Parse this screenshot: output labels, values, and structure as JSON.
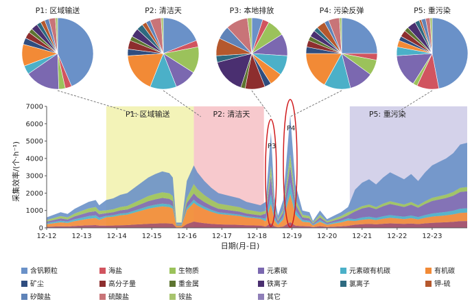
{
  "chart_data": {
    "type": "area",
    "ylabel": "采集效率/(个·h⁻¹)",
    "xlabel": "日期(月-日)",
    "ylim": [
      0,
      7000
    ],
    "yticks": [
      0,
      1000,
      2000,
      3000,
      4000,
      5000,
      6000,
      7000
    ],
    "xticks": [
      "12-12",
      "12-13",
      "12-14",
      "12-15",
      "12-16",
      "12-17",
      "12-18",
      "12-19",
      "12-20",
      "12-21",
      "12-22",
      "12-23"
    ],
    "xlim_days": [
      12,
      24
    ],
    "periods": [
      {
        "label": "P1: 区域输送",
        "start": 13.7,
        "end": 16.2,
        "color": "#f3f3b8"
      },
      {
        "label": "P2: 清洁天",
        "start": 16.2,
        "end": 18.2,
        "color": "#f7c9cd"
      },
      {
        "label": "P5: 重污染",
        "start": 20.65,
        "end": 24.0,
        "color": "#d4d2ea"
      }
    ],
    "peak_labels": [
      {
        "label": "P3",
        "day": 18.4
      },
      {
        "label": "P4",
        "day": 18.95
      }
    ],
    "total_profile": [
      [
        12.0,
        600
      ],
      [
        12.2,
        750
      ],
      [
        12.4,
        900
      ],
      [
        12.6,
        800
      ],
      [
        12.8,
        1100
      ],
      [
        13.0,
        1300
      ],
      [
        13.2,
        1500
      ],
      [
        13.4,
        1600
      ],
      [
        13.5,
        1300
      ],
      [
        13.7,
        1600
      ],
      [
        13.9,
        1700
      ],
      [
        14.1,
        1900
      ],
      [
        14.3,
        2000
      ],
      [
        14.5,
        2300
      ],
      [
        14.7,
        2600
      ],
      [
        14.9,
        2900
      ],
      [
        15.1,
        3100
      ],
      [
        15.3,
        3250
      ],
      [
        15.5,
        3150
      ],
      [
        15.6,
        2900
      ],
      [
        15.7,
        300
      ],
      [
        15.85,
        300
      ],
      [
        16.0,
        2700
      ],
      [
        16.2,
        3600
      ],
      [
        16.3,
        3200
      ],
      [
        16.5,
        2700
      ],
      [
        16.7,
        2300
      ],
      [
        16.9,
        2000
      ],
      [
        17.1,
        1900
      ],
      [
        17.3,
        1800
      ],
      [
        17.5,
        1700
      ],
      [
        17.7,
        1500
      ],
      [
        17.9,
        1400
      ],
      [
        18.1,
        1300
      ],
      [
        18.25,
        1500
      ],
      [
        18.4,
        5500
      ],
      [
        18.5,
        1800
      ],
      [
        18.6,
        700
      ],
      [
        18.75,
        1600
      ],
      [
        18.95,
        6500
      ],
      [
        19.1,
        2500
      ],
      [
        19.3,
        1000
      ],
      [
        19.5,
        900
      ],
      [
        19.6,
        400
      ],
      [
        19.8,
        1000
      ],
      [
        20.0,
        500
      ],
      [
        20.2,
        700
      ],
      [
        20.4,
        900
      ],
      [
        20.6,
        1200
      ],
      [
        20.8,
        2200
      ],
      [
        21.0,
        2600
      ],
      [
        21.2,
        2800
      ],
      [
        21.4,
        2500
      ],
      [
        21.6,
        2900
      ],
      [
        21.8,
        3200
      ],
      [
        22.0,
        3000
      ],
      [
        22.2,
        2800
      ],
      [
        22.4,
        3100
      ],
      [
        22.6,
        2700
      ],
      [
        22.8,
        3200
      ],
      [
        23.0,
        3600
      ],
      [
        23.2,
        3800
      ],
      [
        23.4,
        4000
      ],
      [
        23.6,
        4300
      ],
      [
        23.8,
        4800
      ],
      [
        24.0,
        4900
      ]
    ],
    "stack_layers": [
      {
        "series": "硫酸盐",
        "color": "#a14a66",
        "fractions": {
          "p1": 0.08,
          "p2": 0.1,
          "p3": 0.05,
          "p4": 0.05,
          "p5": 0.08,
          "base": 0.1
        }
      },
      {
        "series": "有机碳",
        "color": "#f28a36",
        "fractions": {
          "p1": 0.3,
          "p2": 0.3,
          "p3": 0.2,
          "p4": 0.25,
          "p5": 0.1,
          "base": 0.25
        }
      },
      {
        "series": "元素碳有机碳",
        "color": "#4bb0c8",
        "fractions": {
          "p1": 0.05,
          "p2": 0.05,
          "p3": 0.1,
          "p4": 0.1,
          "p5": 0.05,
          "base": 0.1
        }
      },
      {
        "series": "元素碳",
        "color": "#7b68b0",
        "fractions": {
          "p1": 0.1,
          "p2": 0.1,
          "p3": 0.2,
          "p4": 0.15,
          "p5": 0.2,
          "base": 0.15
        }
      },
      {
        "series": "生物质",
        "color": "#9bc25b",
        "fractions": {
          "p1": 0.1,
          "p2": 0.15,
          "p3": 0.1,
          "p4": 0.1,
          "p5": 0.05,
          "base": 0.15
        }
      },
      {
        "series": "含钒颗粒",
        "color": "#6a91c8",
        "fractions": {
          "p1": 0.37,
          "p2": 0.3,
          "p3": 0.35,
          "p4": 0.35,
          "p5": 0.52,
          "base": 0.25
        }
      }
    ],
    "pies": [
      {
        "label": "P1: 区域输送",
        "link_day": 14.8,
        "slices": [
          0.44,
          0.03,
          0.03,
          0.16,
          0.04,
          0.1,
          0.03,
          0.03,
          0.02,
          0.03,
          0.02,
          0.02,
          0.02,
          0.03,
          0.01
        ]
      },
      {
        "label": "P2: 清洁天",
        "link_day": 16.4,
        "slices": [
          0.19,
          0.03,
          0.12,
          0.1,
          0.12,
          0.18,
          0.03,
          0.04,
          0.02,
          0.04,
          0.03,
          0.02,
          0.02,
          0.05,
          0.01
        ]
      },
      {
        "label": "P3: 本地排放",
        "link_day": 18.4,
        "slices": [
          0.05,
          0.03,
          0.08,
          0.1,
          0.09,
          0.06,
          0.03,
          0.09,
          0.02,
          0.16,
          0.03,
          0.08,
          0.06,
          0.1,
          0.02
        ]
      },
      {
        "label": "P4: 污染反弹",
        "link_day": 18.95,
        "slices": [
          0.25,
          0.03,
          0.07,
          0.11,
          0.12,
          0.17,
          0.03,
          0.03,
          0.02,
          0.03,
          0.02,
          0.04,
          0.02,
          0.05,
          0.01
        ]
      },
      {
        "label": "P5: 重污染",
        "link_day": 21.8,
        "slices": [
          0.47,
          0.1,
          0.02,
          0.15,
          0.04,
          0.03,
          0.02,
          0.03,
          0.02,
          0.04,
          0.02,
          0.01,
          0.02,
          0.02,
          0.01
        ]
      }
    ],
    "legend": [
      {
        "name": "含钒颗粒",
        "color": "#6a91c8"
      },
      {
        "name": "海盐",
        "color": "#d1545f"
      },
      {
        "name": "生物质",
        "color": "#9bc25b"
      },
      {
        "name": "元素碳",
        "color": "#7b68b0"
      },
      {
        "name": "元素碳有机碳",
        "color": "#4bb0c8"
      },
      {
        "name": "有机碳",
        "color": "#f28a36"
      },
      {
        "name": "矿尘",
        "color": "#2f4d7f"
      },
      {
        "name": "高分子量",
        "color": "#8d2e2e"
      },
      {
        "name": "重金属",
        "color": "#5d7430"
      },
      {
        "name": "铁离子",
        "color": "#4a2f70"
      },
      {
        "name": "氯离子",
        "color": "#2e6a80"
      },
      {
        "name": "钾-硫",
        "color": "#b5582d"
      },
      {
        "name": "矽酸盐",
        "color": "#5f83b8"
      },
      {
        "name": "硫酸盐",
        "color": "#c87478"
      },
      {
        "name": "铵盐",
        "color": "#a8c46e"
      },
      {
        "name": "其它",
        "color": "#8f7fb8"
      }
    ]
  }
}
